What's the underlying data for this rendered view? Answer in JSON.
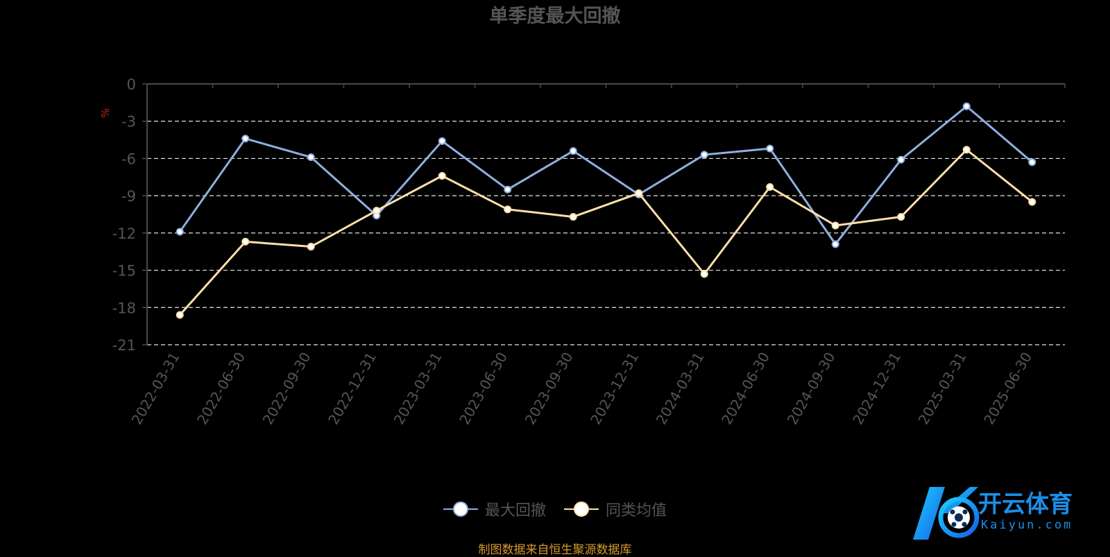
{
  "chart_data": {
    "type": "line",
    "title": "单季度最大回撤",
    "ylabel": "%",
    "ylim": [
      -21,
      0
    ],
    "yticks": [
      0,
      -3,
      -6,
      -9,
      -12,
      -15,
      -18,
      -21
    ],
    "categories": [
      "2022-03-31",
      "2022-06-30",
      "2022-09-30",
      "2022-12-31",
      "2023-03-31",
      "2023-06-30",
      "2023-09-30",
      "2023-12-31",
      "2024-03-31",
      "2024-06-30",
      "2024-09-30",
      "2024-12-31",
      "2025-03-31",
      "2025-06-30"
    ],
    "series": [
      {
        "name": "最大回撤",
        "color": "#8fb0e0",
        "values": [
          -11.9,
          -4.4,
          -5.9,
          -10.6,
          -4.6,
          -8.5,
          -5.4,
          -8.9,
          -5.7,
          -5.2,
          -12.9,
          -6.1,
          -1.8,
          -6.3
        ]
      },
      {
        "name": "同类均值",
        "color": "#ffe0a8",
        "values": [
          -18.6,
          -12.7,
          -13.1,
          -10.2,
          -7.4,
          -10.1,
          -10.7,
          -8.8,
          -15.3,
          -8.3,
          -11.4,
          -10.7,
          -5.3,
          -9.5
        ]
      }
    ],
    "grid": true,
    "legend_position": "bottom-center"
  },
  "footer": {
    "source": "制图数据来自恒生聚源数据库"
  },
  "watermark": {
    "brand": "开云体育",
    "domain": "Kaiyun.com"
  }
}
